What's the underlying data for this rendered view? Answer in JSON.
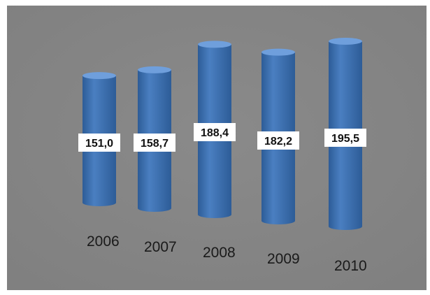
{
  "chart_data": {
    "type": "bar",
    "title": "",
    "xlabel": "",
    "ylabel": "",
    "categories": [
      "2006",
      "2007",
      "2008",
      "2009",
      "2010"
    ],
    "values": [
      151.0,
      158.7,
      188.4,
      182.2,
      195.5
    ],
    "value_labels": [
      "151,0",
      "158,7",
      "188,4",
      "182,2",
      "195,5"
    ],
    "ylim": [
      0,
      200
    ],
    "grid": false,
    "legend": "none",
    "style": "3d-cylinder",
    "colors": {
      "bar": "#4a7fc1",
      "bar_dark": "#2d5c97",
      "bar_top": "#6f9fdc",
      "background": "#808080",
      "frame": "#ffffff",
      "label_box": "#ffffff",
      "label_text": "#111111",
      "category_text": "#1a1a1a"
    }
  }
}
